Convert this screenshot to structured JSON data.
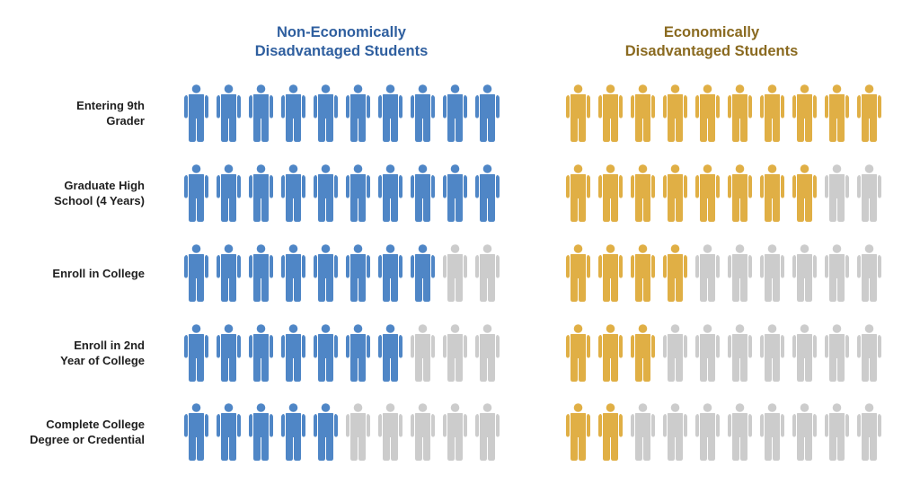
{
  "colors": {
    "non_disadvantaged": "#4F86C6",
    "disadvantaged": "#E0AF45",
    "empty": "#CCCCCC",
    "title_non_disadvantaged": "#2F5F9F",
    "title_disadvantaged": "#8A6A20"
  },
  "groups": {
    "non_disadvantaged": {
      "title": "Non-Economically\nDisadvantaged Students"
    },
    "disadvantaged": {
      "title": "Economically\nDisadvantaged Students"
    }
  },
  "stages": [
    {
      "label": "Entering 9th\nGrader"
    },
    {
      "label": "Graduate High\nSchool (4 Years)"
    },
    {
      "label": "Enroll in College"
    },
    {
      "label": "Enroll in 2nd\nYear of College"
    },
    {
      "label": "Complete College\nDegree or Credential"
    }
  ],
  "chart_data": {
    "type": "pictograph",
    "title": "",
    "unit": "out of 10 students",
    "categories": [
      "Entering 9th Grader",
      "Graduate High School (4 Years)",
      "Enroll in College",
      "Enroll in 2nd Year of College",
      "Complete College Degree or Credential"
    ],
    "total_per_row": 10,
    "series": [
      {
        "name": "Non-Economically Disadvantaged Students",
        "color": "#4F86C6",
        "values": [
          10,
          10,
          8,
          7,
          5
        ]
      },
      {
        "name": "Economically Disadvantaged Students",
        "color": "#E0AF45",
        "values": [
          10,
          8,
          4,
          3,
          2
        ]
      }
    ],
    "legend_position": "top (column headers)"
  }
}
